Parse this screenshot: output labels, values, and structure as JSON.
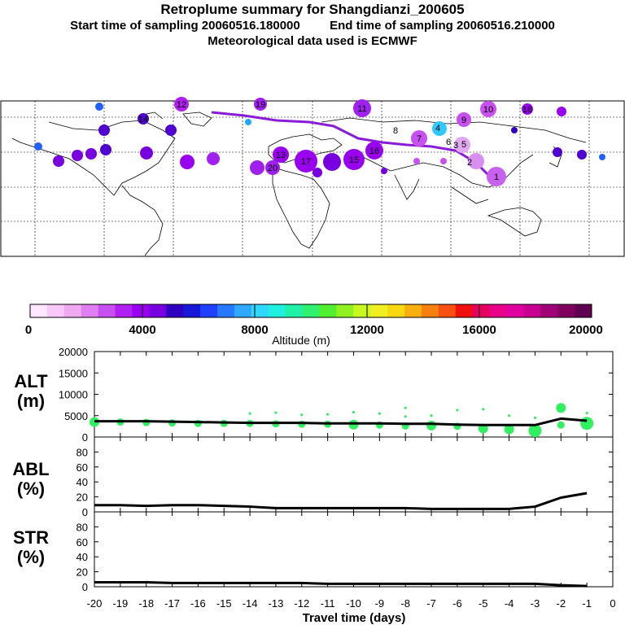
{
  "header": {
    "title": "Retroplume summary for Shangdianzi_200605",
    "start_label": "Start time of sampling 20060516.180000",
    "end_label": "End time of sampling 20060516.210000",
    "met_label": "Meteorological data used is ECMWF"
  },
  "colorbar": {
    "label": "Altitude (m)",
    "ticks": [
      "0",
      "4000",
      "8000",
      "12000",
      "16000",
      "20000"
    ],
    "colors": [
      "#ffe8ff",
      "#f8c8f8",
      "#f0a8f0",
      "#e080f0",
      "#c850f0",
      "#b020f0",
      "#9a00f0",
      "#7800e0",
      "#3000c0",
      "#1818d8",
      "#2040ff",
      "#2878ff",
      "#30a8ff",
      "#30d8ff",
      "#20f0e0",
      "#20f0a8",
      "#30f070",
      "#50f030",
      "#90f020",
      "#c8f820",
      "#f0f020",
      "#f8d810",
      "#f8b010",
      "#f88010",
      "#f85010",
      "#f01010",
      "#e80060",
      "#e80088",
      "#e000a0",
      "#c80090",
      "#a00078",
      "#800060",
      "#600050"
    ]
  },
  "map": {
    "labels": [
      "1",
      "2",
      "3",
      "4",
      "5",
      "6",
      "7",
      "8",
      "9",
      "10",
      "11",
      "12",
      "13",
      "14",
      "15",
      "16",
      "17",
      "18",
      "19",
      "20"
    ]
  },
  "chart_data": [
    {
      "type": "line",
      "panel": "ALT",
      "ylabel": [
        "ALT",
        "(m)"
      ],
      "ylim": [
        0,
        20000
      ],
      "yticks": [
        "0",
        "5000",
        "10000",
        "15000",
        "20000"
      ],
      "x": [
        -20,
        -19,
        -18,
        -17,
        -16,
        -15,
        -14,
        -13,
        -12,
        -11,
        -10,
        -9,
        -8,
        -7,
        -6,
        -5,
        -4,
        -3,
        -2,
        -1
      ],
      "series": [
        {
          "name": "mean altitude",
          "values": [
            3700,
            3700,
            3700,
            3600,
            3500,
            3400,
            3300,
            3300,
            3300,
            3200,
            3200,
            3200,
            3100,
            3100,
            2900,
            2800,
            2800,
            2800,
            4300,
            3800
          ]
        }
      ],
      "clusters": [
        {
          "x": -20,
          "alt": 3500,
          "size": "medium"
        },
        {
          "x": -19,
          "alt": 3500,
          "size": "small"
        },
        {
          "x": -18,
          "alt": 3400,
          "size": "small"
        },
        {
          "x": -17,
          "alt": 3300,
          "size": "small"
        },
        {
          "x": -16,
          "alt": 3200,
          "size": "small"
        },
        {
          "x": -15,
          "alt": 3200,
          "size": "small"
        },
        {
          "x": -14,
          "alt": 3200,
          "size": "small"
        },
        {
          "x": -14,
          "alt": 5500,
          "size": "tiny"
        },
        {
          "x": -13,
          "alt": 3100,
          "size": "small"
        },
        {
          "x": -13,
          "alt": 5700,
          "size": "tiny"
        },
        {
          "x": -12,
          "alt": 3000,
          "size": "small"
        },
        {
          "x": -12,
          "alt": 5200,
          "size": "tiny"
        },
        {
          "x": -11,
          "alt": 3000,
          "size": "small"
        },
        {
          "x": -11,
          "alt": 5300,
          "size": "tiny"
        },
        {
          "x": -10,
          "alt": 2900,
          "size": "medium"
        },
        {
          "x": -10,
          "alt": 5800,
          "size": "tiny"
        },
        {
          "x": -9,
          "alt": 2800,
          "size": "small"
        },
        {
          "x": -9,
          "alt": 5500,
          "size": "tiny"
        },
        {
          "x": -8,
          "alt": 2600,
          "size": "small"
        },
        {
          "x": -8,
          "alt": 4800,
          "size": "tiny"
        },
        {
          "x": -8,
          "alt": 6800,
          "size": "tiny"
        },
        {
          "x": -7,
          "alt": 2700,
          "size": "medium"
        },
        {
          "x": -7,
          "alt": 5000,
          "size": "tiny"
        },
        {
          "x": -6,
          "alt": 2500,
          "size": "small"
        },
        {
          "x": -6,
          "alt": 6300,
          "size": "tiny"
        },
        {
          "x": -5,
          "alt": 2000,
          "size": "medium"
        },
        {
          "x": -5,
          "alt": 6500,
          "size": "tiny"
        },
        {
          "x": -4,
          "alt": 1800,
          "size": "medium"
        },
        {
          "x": -4,
          "alt": 5000,
          "size": "tiny"
        },
        {
          "x": -3,
          "alt": 1500,
          "size": "large"
        },
        {
          "x": -3,
          "alt": 4500,
          "size": "tiny"
        },
        {
          "x": -2,
          "alt": 6800,
          "size": "medium"
        },
        {
          "x": -2,
          "alt": 2800,
          "size": "small"
        },
        {
          "x": -1,
          "alt": 3200,
          "size": "large"
        },
        {
          "x": -1,
          "alt": 5600,
          "size": "tiny"
        }
      ]
    },
    {
      "type": "line",
      "panel": "ABL",
      "ylabel": [
        "ABL",
        "(%)"
      ],
      "ylim": [
        0,
        100
      ],
      "yticks": [
        "0",
        "20",
        "40",
        "60",
        "80"
      ],
      "x": [
        -20,
        -19,
        -18,
        -17,
        -16,
        -15,
        -14,
        -13,
        -12,
        -11,
        -10,
        -9,
        -8,
        -7,
        -6,
        -5,
        -4,
        -3,
        -2,
        -1
      ],
      "series": [
        {
          "name": "fraction in ABL",
          "values": [
            9,
            9,
            8,
            9,
            9,
            8,
            7,
            5,
            5,
            5,
            5,
            5,
            5,
            4,
            4,
            4,
            4,
            7,
            19,
            25
          ]
        }
      ]
    },
    {
      "type": "line",
      "panel": "STR",
      "ylabel": [
        "STR",
        "(%)"
      ],
      "ylim": [
        0,
        100
      ],
      "yticks": [
        "0",
        "20",
        "40",
        "60",
        "80"
      ],
      "x": [
        -20,
        -19,
        -18,
        -17,
        -16,
        -15,
        -14,
        -13,
        -12,
        -11,
        -10,
        -9,
        -8,
        -7,
        -6,
        -5,
        -4,
        -3,
        -2,
        -1
      ],
      "series": [
        {
          "name": "fraction in stratosphere",
          "values": [
            6,
            6,
            6,
            5,
            5,
            5,
            5,
            5,
            5,
            4,
            4,
            4,
            4,
            4,
            4,
            4,
            4,
            4,
            2,
            1
          ]
        }
      ]
    }
  ],
  "xaxis": {
    "xlabel": "Travel time (days)",
    "ticks": [
      "-20",
      "-19",
      "-18",
      "-17",
      "-16",
      "-15",
      "-14",
      "-13",
      "-12",
      "-11",
      "-10",
      "-9",
      "-8",
      "-7",
      "-6",
      "-5",
      "-4",
      "-3",
      "-2",
      "-1",
      "0"
    ]
  }
}
